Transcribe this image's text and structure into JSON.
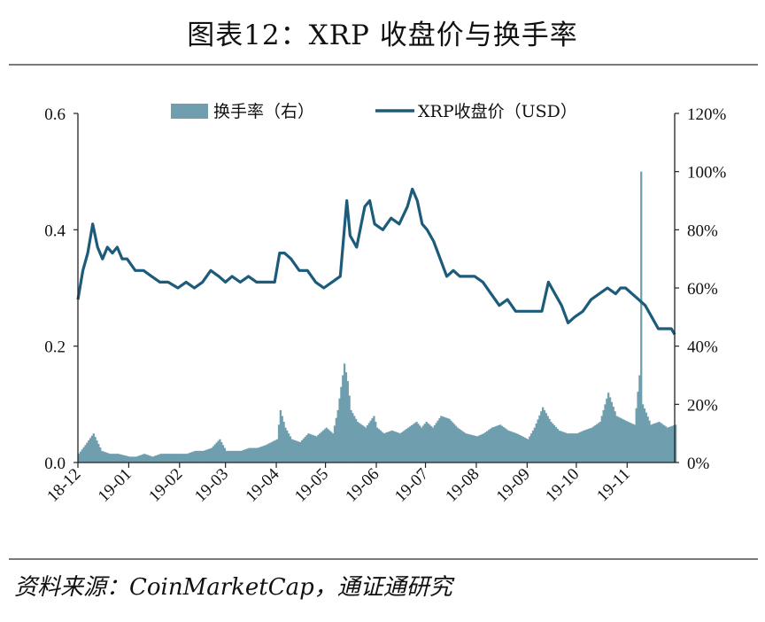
{
  "title": "图表12：XRP 收盘价与换手率",
  "source": "资料来源：CoinMarketCap，通证通研究",
  "colors": {
    "price": "#1d5b7a",
    "turnover": "#6f9eae",
    "axis": "#222222"
  },
  "chart_data": {
    "type": "bar+line",
    "title": "图表12：XRP 收盘价与换手率",
    "legend_position": "top-center",
    "grid": false,
    "x_tick_labels": [
      "18-12",
      "19-01",
      "19-02",
      "19-03",
      "19-04",
      "19-05",
      "19-06",
      "19-07",
      "19-08",
      "19-09",
      "19-10",
      "19-11"
    ],
    "x_range": [
      "2018-12-01",
      "2019-11-30"
    ],
    "y_left": {
      "min": 0.0,
      "max": 0.6,
      "ticks": [
        "0.0",
        "0.2",
        "0.4",
        "0.6"
      ]
    },
    "y_right": {
      "min": 0,
      "max": 120,
      "ticks": [
        "0%",
        "20%",
        "40%",
        "60%",
        "80%",
        "100%",
        "120%"
      ]
    },
    "series": [
      {
        "name": "换手率（右）",
        "type": "bar",
        "axis": "right",
        "unit": "%",
        "points": [
          [
            "2018-12-01",
            3
          ],
          [
            "2018-12-05",
            6
          ],
          [
            "2018-12-10",
            10
          ],
          [
            "2018-12-15",
            4
          ],
          [
            "2018-12-20",
            3
          ],
          [
            "2018-12-25",
            3
          ],
          [
            "2019-01-01",
            2
          ],
          [
            "2019-01-05",
            2
          ],
          [
            "2019-01-10",
            3
          ],
          [
            "2019-01-15",
            2
          ],
          [
            "2019-01-20",
            3
          ],
          [
            "2019-01-25",
            3
          ],
          [
            "2019-02-01",
            3
          ],
          [
            "2019-02-05",
            3
          ],
          [
            "2019-02-10",
            4
          ],
          [
            "2019-02-15",
            4
          ],
          [
            "2019-02-20",
            5
          ],
          [
            "2019-02-25",
            8
          ],
          [
            "2019-03-01",
            4
          ],
          [
            "2019-03-05",
            4
          ],
          [
            "2019-03-10",
            4
          ],
          [
            "2019-03-15",
            5
          ],
          [
            "2019-03-20",
            5
          ],
          [
            "2019-03-25",
            6
          ],
          [
            "2019-04-01",
            8
          ],
          [
            "2019-04-03",
            18
          ],
          [
            "2019-04-06",
            12
          ],
          [
            "2019-04-10",
            8
          ],
          [
            "2019-04-15",
            7
          ],
          [
            "2019-04-20",
            10
          ],
          [
            "2019-04-25",
            9
          ],
          [
            "2019-05-01",
            12
          ],
          [
            "2019-05-05",
            10
          ],
          [
            "2019-05-08",
            18
          ],
          [
            "2019-05-10",
            26
          ],
          [
            "2019-05-12",
            34
          ],
          [
            "2019-05-14",
            28
          ],
          [
            "2019-05-16",
            18
          ],
          [
            "2019-05-20",
            14
          ],
          [
            "2019-05-25",
            12
          ],
          [
            "2019-05-30",
            16
          ],
          [
            "2019-06-01",
            12
          ],
          [
            "2019-06-05",
            10
          ],
          [
            "2019-06-10",
            11
          ],
          [
            "2019-06-15",
            10
          ],
          [
            "2019-06-20",
            12
          ],
          [
            "2019-06-25",
            14
          ],
          [
            "2019-06-28",
            12
          ],
          [
            "2019-07-01",
            14
          ],
          [
            "2019-07-05",
            12
          ],
          [
            "2019-07-10",
            16
          ],
          [
            "2019-07-15",
            15
          ],
          [
            "2019-07-20",
            12
          ],
          [
            "2019-07-25",
            10
          ],
          [
            "2019-08-01",
            9
          ],
          [
            "2019-08-05",
            10
          ],
          [
            "2019-08-10",
            12
          ],
          [
            "2019-08-15",
            13
          ],
          [
            "2019-08-20",
            11
          ],
          [
            "2019-08-25",
            10
          ],
          [
            "2019-09-01",
            8
          ],
          [
            "2019-09-05",
            12
          ],
          [
            "2019-09-10",
            19
          ],
          [
            "2019-09-15",
            14
          ],
          [
            "2019-09-20",
            11
          ],
          [
            "2019-09-25",
            10
          ],
          [
            "2019-10-01",
            10
          ],
          [
            "2019-10-05",
            11
          ],
          [
            "2019-10-10",
            12
          ],
          [
            "2019-10-15",
            14
          ],
          [
            "2019-10-20",
            24
          ],
          [
            "2019-10-25",
            16
          ],
          [
            "2019-11-01",
            14
          ],
          [
            "2019-11-05",
            13
          ],
          [
            "2019-11-08",
            30
          ],
          [
            "2019-11-09",
            100
          ],
          [
            "2019-11-10",
            20
          ],
          [
            "2019-11-15",
            13
          ],
          [
            "2019-11-20",
            14
          ],
          [
            "2019-11-25",
            12
          ],
          [
            "2019-11-30",
            13
          ]
        ]
      },
      {
        "name": "XRP收盘价（USD）",
        "type": "line",
        "axis": "left",
        "unit": "USD",
        "points": [
          [
            "2018-12-01",
            0.28
          ],
          [
            "2018-12-04",
            0.33
          ],
          [
            "2018-12-07",
            0.36
          ],
          [
            "2018-12-10",
            0.41
          ],
          [
            "2018-12-13",
            0.37
          ],
          [
            "2018-12-16",
            0.35
          ],
          [
            "2018-12-19",
            0.37
          ],
          [
            "2018-12-22",
            0.36
          ],
          [
            "2018-12-25",
            0.37
          ],
          [
            "2018-12-28",
            0.35
          ],
          [
            "2018-12-31",
            0.35
          ],
          [
            "2019-01-05",
            0.33
          ],
          [
            "2019-01-10",
            0.33
          ],
          [
            "2019-01-15",
            0.32
          ],
          [
            "2019-01-20",
            0.31
          ],
          [
            "2019-01-25",
            0.31
          ],
          [
            "2019-01-31",
            0.3
          ],
          [
            "2019-02-05",
            0.31
          ],
          [
            "2019-02-10",
            0.3
          ],
          [
            "2019-02-15",
            0.31
          ],
          [
            "2019-02-20",
            0.33
          ],
          [
            "2019-02-25",
            0.32
          ],
          [
            "2019-03-01",
            0.31
          ],
          [
            "2019-03-05",
            0.32
          ],
          [
            "2019-03-10",
            0.31
          ],
          [
            "2019-03-15",
            0.32
          ],
          [
            "2019-03-20",
            0.31
          ],
          [
            "2019-03-25",
            0.31
          ],
          [
            "2019-03-31",
            0.31
          ],
          [
            "2019-04-03",
            0.36
          ],
          [
            "2019-04-06",
            0.36
          ],
          [
            "2019-04-10",
            0.35
          ],
          [
            "2019-04-15",
            0.33
          ],
          [
            "2019-04-20",
            0.33
          ],
          [
            "2019-04-25",
            0.31
          ],
          [
            "2019-04-30",
            0.3
          ],
          [
            "2019-05-05",
            0.31
          ],
          [
            "2019-05-10",
            0.32
          ],
          [
            "2019-05-14",
            0.45
          ],
          [
            "2019-05-16",
            0.39
          ],
          [
            "2019-05-20",
            0.37
          ],
          [
            "2019-05-25",
            0.44
          ],
          [
            "2019-05-28",
            0.45
          ],
          [
            "2019-05-31",
            0.41
          ],
          [
            "2019-06-05",
            0.4
          ],
          [
            "2019-06-10",
            0.42
          ],
          [
            "2019-06-15",
            0.41
          ],
          [
            "2019-06-20",
            0.44
          ],
          [
            "2019-06-23",
            0.47
          ],
          [
            "2019-06-26",
            0.45
          ],
          [
            "2019-06-29",
            0.41
          ],
          [
            "2019-07-02",
            0.4
          ],
          [
            "2019-07-06",
            0.38
          ],
          [
            "2019-07-10",
            0.35
          ],
          [
            "2019-07-14",
            0.32
          ],
          [
            "2019-07-18",
            0.33
          ],
          [
            "2019-07-22",
            0.32
          ],
          [
            "2019-07-26",
            0.32
          ],
          [
            "2019-07-31",
            0.32
          ],
          [
            "2019-08-05",
            0.31
          ],
          [
            "2019-08-10",
            0.29
          ],
          [
            "2019-08-15",
            0.27
          ],
          [
            "2019-08-20",
            0.28
          ],
          [
            "2019-08-25",
            0.26
          ],
          [
            "2019-08-31",
            0.26
          ],
          [
            "2019-09-05",
            0.26
          ],
          [
            "2019-09-10",
            0.26
          ],
          [
            "2019-09-14",
            0.31
          ],
          [
            "2019-09-18",
            0.29
          ],
          [
            "2019-09-22",
            0.27
          ],
          [
            "2019-09-26",
            0.24
          ],
          [
            "2019-09-30",
            0.25
          ],
          [
            "2019-10-05",
            0.26
          ],
          [
            "2019-10-10",
            0.28
          ],
          [
            "2019-10-15",
            0.29
          ],
          [
            "2019-10-20",
            0.3
          ],
          [
            "2019-10-25",
            0.29
          ],
          [
            "2019-10-28",
            0.3
          ],
          [
            "2019-10-31",
            0.3
          ],
          [
            "2019-11-04",
            0.29
          ],
          [
            "2019-11-08",
            0.28
          ],
          [
            "2019-11-12",
            0.27
          ],
          [
            "2019-11-16",
            0.25
          ],
          [
            "2019-11-20",
            0.23
          ],
          [
            "2019-11-24",
            0.23
          ],
          [
            "2019-11-28",
            0.23
          ],
          [
            "2019-11-30",
            0.22
          ]
        ]
      }
    ]
  }
}
